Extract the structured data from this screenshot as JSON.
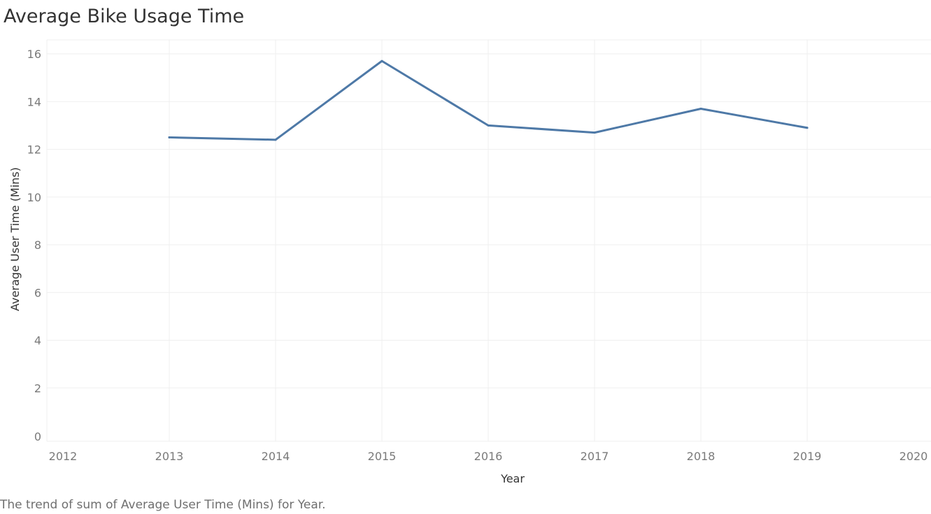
{
  "title": "Average Bike Usage Time",
  "caption": "The trend of sum of Average User Time (Mins) for Year.",
  "colors": {
    "series": "#4e79a7",
    "gridline": "#efefef",
    "title": "#333333",
    "tick": "#7a7a7a"
  },
  "chart_data": {
    "type": "line",
    "title": "Average Bike Usage Time",
    "xlabel": "Year",
    "ylabel": "Average User Time (Mins)",
    "x_ticks": [
      "2012",
      "2013",
      "2014",
      "2015",
      "2016",
      "2017",
      "2018",
      "2019",
      "2020"
    ],
    "y_ticks": [
      "0",
      "2",
      "4",
      "6",
      "8",
      "10",
      "12",
      "14",
      "16"
    ],
    "xlim": [
      2012,
      2020
    ],
    "ylim": [
      0,
      16.5
    ],
    "grid": true,
    "series": [
      {
        "x": [
          2013,
          2014,
          2015,
          2016,
          2017,
          2018,
          2019
        ],
        "values": [
          12.5,
          12.4,
          15.7,
          13.0,
          12.7,
          13.7,
          12.9
        ]
      }
    ]
  }
}
